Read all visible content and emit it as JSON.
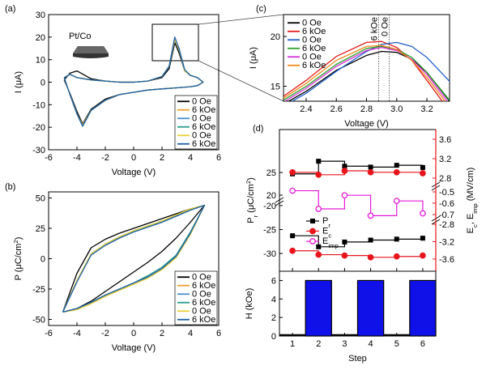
{
  "chart_data": [
    {
      "type": "line",
      "panel_label": "(a)",
      "annotation": "Pt/Co",
      "xlabel": "Voltage (V)",
      "ylabel": "I (μA)",
      "xlim": [
        -6,
        6
      ],
      "xticks": [
        -6,
        -4,
        -2,
        0,
        2,
        4,
        6
      ],
      "ylim": [
        -30,
        30
      ],
      "yticks": [
        -30,
        -20,
        -10,
        0,
        10,
        20,
        30
      ],
      "legend": "lower right",
      "x": [
        -4.9,
        -4.5,
        -4,
        -3,
        -2,
        -1,
        0,
        1,
        2,
        2.5,
        2.9,
        3.2,
        3.6,
        4,
        4.5,
        4.9,
        4.5,
        4,
        3,
        2,
        1,
        0,
        -1,
        -2,
        -3,
        -3.6,
        -4,
        -4.5,
        -4.9
      ],
      "series": [
        {
          "name": "0 Oe",
          "color": "#000000",
          "values": [
            1,
            4,
            5,
            1.5,
            0.5,
            0,
            0,
            0.5,
            2,
            6,
            17.5,
            13,
            5,
            3,
            2,
            0,
            -1.5,
            -2,
            -2.5,
            -3,
            -3.5,
            -4.5,
            -5.5,
            -7.5,
            -12,
            -18.5,
            -13,
            -5,
            1
          ]
        },
        {
          "name": "6 kOe",
          "color": "#f0a030",
          "values": [
            2,
            3.5,
            2,
            1,
            0.5,
            0,
            0,
            0.5,
            2.5,
            7,
            19.5,
            15,
            5,
            3,
            2,
            0,
            -1.5,
            -2,
            -2.5,
            -3,
            -3.5,
            -4.5,
            -5.5,
            -8,
            -12.5,
            -19,
            -14,
            -5.5,
            2
          ]
        },
        {
          "name": "0 Oe",
          "color": "#4a90c8",
          "values": [
            2,
            3.5,
            2,
            1,
            0.5,
            0,
            0,
            0.5,
            2.5,
            7,
            19,
            14.5,
            5,
            3,
            2,
            0,
            -1.5,
            -2,
            -2.5,
            -3,
            -3.5,
            -4.5,
            -5.5,
            -8,
            -12.5,
            -19.5,
            -14,
            -5.5,
            2
          ]
        },
        {
          "name": "6 kOe",
          "color": "#2a9d8f",
          "values": [
            2,
            3.5,
            2,
            1,
            0.5,
            0,
            0,
            0.5,
            2.5,
            7,
            19.5,
            15,
            5.5,
            3,
            2,
            0,
            -1.5,
            -2,
            -2.5,
            -3,
            -3.5,
            -4.5,
            -5.5,
            -8,
            -12.5,
            -19.5,
            -14,
            -5.5,
            2
          ]
        },
        {
          "name": "0 Oe",
          "color": "#e6d23a",
          "values": [
            2,
            3.5,
            2,
            1,
            0.5,
            0,
            0,
            0.5,
            2.5,
            7,
            19,
            14.5,
            5,
            3,
            2,
            0,
            -1.5,
            -2,
            -2.5,
            -3,
            -3.5,
            -4.5,
            -5.5,
            -8,
            -12.5,
            -19,
            -14,
            -5.5,
            2
          ]
        },
        {
          "name": "6 kOe",
          "color": "#1f5fa8",
          "values": [
            2,
            3.5,
            2,
            1,
            0.5,
            0,
            0,
            0.5,
            2.5,
            7,
            20,
            15,
            5.5,
            3,
            2,
            0,
            -1.5,
            -2,
            -2.5,
            -3,
            -3.5,
            -4.5,
            -5.5,
            -8,
            -12.5,
            -19.5,
            -14,
            -5.5,
            2
          ]
        }
      ]
    },
    {
      "type": "line",
      "panel_label": "(b)",
      "xlabel": "Voltage (V)",
      "ylabel": [
        "P (μC/cm",
        "2",
        ")"
      ],
      "xlim": [
        -6,
        6
      ],
      "xticks": [
        -6,
        -4,
        -2,
        0,
        2,
        4,
        6
      ],
      "ylim": [
        -55,
        55
      ],
      "yticks": [
        -50,
        -25,
        0,
        25,
        50
      ],
      "legend": "lower right",
      "x": [
        -5,
        -4,
        -3,
        -2,
        -1,
        0,
        1,
        2,
        3,
        4,
        5,
        4,
        3,
        2,
        1,
        0,
        -1,
        -2,
        -3,
        -4,
        -5
      ],
      "series": [
        {
          "name": "0 Oe",
          "color": "#000000",
          "values": [
            -44,
            -41,
            -35,
            -27,
            -19,
            -11,
            -3,
            6,
            17,
            30,
            44,
            41,
            37,
            33,
            29,
            25,
            21,
            16,
            9,
            -12,
            -44
          ]
        },
        {
          "name": "6 kOe",
          "color": "#f0a030",
          "values": [
            -44,
            -42,
            -37,
            -31,
            -26,
            -21,
            -16,
            -9,
            1,
            20,
            44,
            41,
            36,
            31,
            27,
            23,
            18,
            12,
            4,
            -18,
            -44
          ]
        },
        {
          "name": "0 Oe",
          "color": "#4a90c8",
          "values": [
            -44,
            -41,
            -36,
            -30,
            -25,
            -20,
            -15,
            -8,
            2,
            21,
            44,
            40,
            35,
            30,
            26,
            22,
            17,
            11,
            3,
            -19,
            -44
          ]
        },
        {
          "name": "6 kOe",
          "color": "#2a9d8f",
          "values": [
            -44,
            -41,
            -36,
            -30,
            -25,
            -20,
            -14,
            -7,
            3,
            22,
            44,
            40,
            35,
            31,
            27,
            23,
            18,
            12,
            4,
            -19,
            -44
          ]
        },
        {
          "name": "0 Oe",
          "color": "#e6d23a",
          "values": [
            -44,
            -42,
            -37,
            -31,
            -26,
            -21,
            -16,
            -9,
            1,
            20,
            44,
            41,
            36,
            31,
            27,
            23,
            18,
            12,
            4,
            -18,
            -44
          ]
        },
        {
          "name": "6 kOe",
          "color": "#1f5fa8",
          "values": [
            -44,
            -41,
            -36,
            -30,
            -25,
            -20,
            -15,
            -8,
            2,
            21,
            44,
            40,
            35,
            30,
            26,
            22,
            17,
            11,
            3,
            -19,
            -44
          ]
        }
      ]
    },
    {
      "type": "line",
      "panel_label": "(c)",
      "xlabel": "Voltage (V)",
      "ylabel": "I (μA)",
      "xlim": [
        2.25,
        3.35
      ],
      "xticks": [
        2.4,
        2.6,
        2.8,
        {
          "value": 3,
          "label": "3.0"
        },
        3.2
      ],
      "ylim": [
        13.5,
        22.2
      ],
      "yticks": [
        15,
        20
      ],
      "legend": "upper left",
      "annotations": [
        {
          "text": "6 kOe",
          "x": 2.88
        },
        {
          "text": "0 Oe",
          "x": 2.95
        }
      ],
      "x": [
        2.25,
        2.4,
        2.6,
        2.8,
        2.9,
        3.0,
        3.1,
        3.2,
        3.35
      ],
      "series": [
        {
          "name": "0 Oe",
          "color": "#000000",
          "values": [
            13.2,
            14.5,
            16.6,
            18.1,
            18.5,
            18.4,
            17.7,
            16.4,
            13.5
          ]
        },
        {
          "name": "6 kOe",
          "color": "#e41a1c",
          "values": [
            14.0,
            15.6,
            18.0,
            19.4,
            19.5,
            18.9,
            17.6,
            15.6,
            12.5
          ]
        },
        {
          "name": "0 Oe",
          "color": "#1f5fc8",
          "values": [
            13.0,
            14.3,
            16.5,
            18.5,
            19.2,
            19.4,
            19.0,
            17.9,
            15.5
          ]
        },
        {
          "name": "6 kOe",
          "color": "#2ca02c",
          "values": [
            13.6,
            15.0,
            17.2,
            18.8,
            19.0,
            18.7,
            17.9,
            16.4,
            13.6
          ]
        },
        {
          "name": "0 Oe",
          "color": "#d62fd6",
          "values": [
            13.4,
            14.8,
            17.0,
            18.6,
            18.9,
            18.6,
            17.7,
            16.2,
            13.2
          ]
        },
        {
          "name": "6 kOe",
          "color": "#f08a1c",
          "values": [
            13.8,
            15.3,
            17.6,
            19.0,
            19.1,
            18.7,
            17.6,
            15.9,
            12.9
          ]
        }
      ]
    },
    {
      "type": "step",
      "panel_label": "(d)",
      "ylabel": [
        "P",
        "r",
        " (μC/cm",
        "2",
        ")"
      ],
      "y2label": [
        "E",
        "c",
        ", E",
        "imp",
        " (MV/cm)"
      ],
      "right_color": "#e8141c",
      "x": [
        1,
        2,
        3,
        4,
        5,
        6
      ],
      "xlim": [
        0.5,
        6.5
      ],
      "xticks": [
        1,
        2,
        3,
        4,
        5,
        6
      ],
      "axes": [
        {
          "side": "left",
          "ylim": [
            18.75,
            34.5
          ],
          "yticks": [
            20,
            25
          ]
        },
        {
          "side": "left",
          "ylim": [
            -33.7,
            -19
          ],
          "yticks": [
            -30,
            -25,
            -20
          ]
        },
        {
          "side": "right",
          "ylim": [
            2.65,
            3.8
          ],
          "yticks": [
            2.8,
            3.2,
            3.6
          ]
        },
        {
          "side": "right",
          "ylim": [
            -0.743,
            -0.443
          ],
          "yticks": [
            -0.7,
            -0.6,
            -0.5
          ]
        },
        {
          "side": "right",
          "ylim": [
            -3.88,
            -2.69
          ],
          "yticks": [
            -3.6,
            -3.2,
            -2.8
          ]
        }
      ],
      "series": [
        {
          "name": "P",
          "name_sub": "r",
          "color": "#000000",
          "marker": "square",
          "parts": [
            {
              "axis": 0,
              "values": [
                24.7,
                27.5,
                26.4,
                26.2,
                26.6,
                26.1
              ]
            },
            {
              "axis": 1,
              "values": [
                -26.3,
                -28.6,
                -27.6,
                -27.2,
                -27.0,
                -26.8
              ]
            }
          ]
        },
        {
          "name": "E",
          "name_sub": "c",
          "color": "#e8141c",
          "marker": "circle",
          "parts": [
            {
              "axis": 2,
              "values": [
                2.92,
                2.87,
                2.95,
                2.92,
                2.92,
                2.9
              ]
            },
            {
              "axis": 4,
              "values": [
                -3.41,
                -3.5,
                -3.52,
                -3.56,
                -3.54,
                -3.52
              ]
            }
          ]
        },
        {
          "name": "E",
          "name_sub": "imp",
          "color": "#e619d8",
          "marker": "open-circle",
          "parts": [
            {
              "axis": 3,
              "values": [
                -0.49,
                -0.65,
                -0.53,
                -0.71,
                -0.58,
                -0.69
              ]
            }
          ]
        }
      ]
    },
    {
      "type": "bar",
      "xlabel": "Step",
      "ylabel": "H (kOe)",
      "color": "#1010e8",
      "x": [
        1,
        2,
        3,
        4,
        5,
        6
      ],
      "values": [
        0,
        6,
        0,
        6,
        0,
        6
      ],
      "xlim": [
        0.5,
        6.5
      ],
      "xticks": [
        1,
        2,
        3,
        4,
        5,
        6
      ],
      "ylim": [
        0,
        7
      ],
      "yticks": [
        0,
        2,
        4,
        6
      ]
    }
  ]
}
